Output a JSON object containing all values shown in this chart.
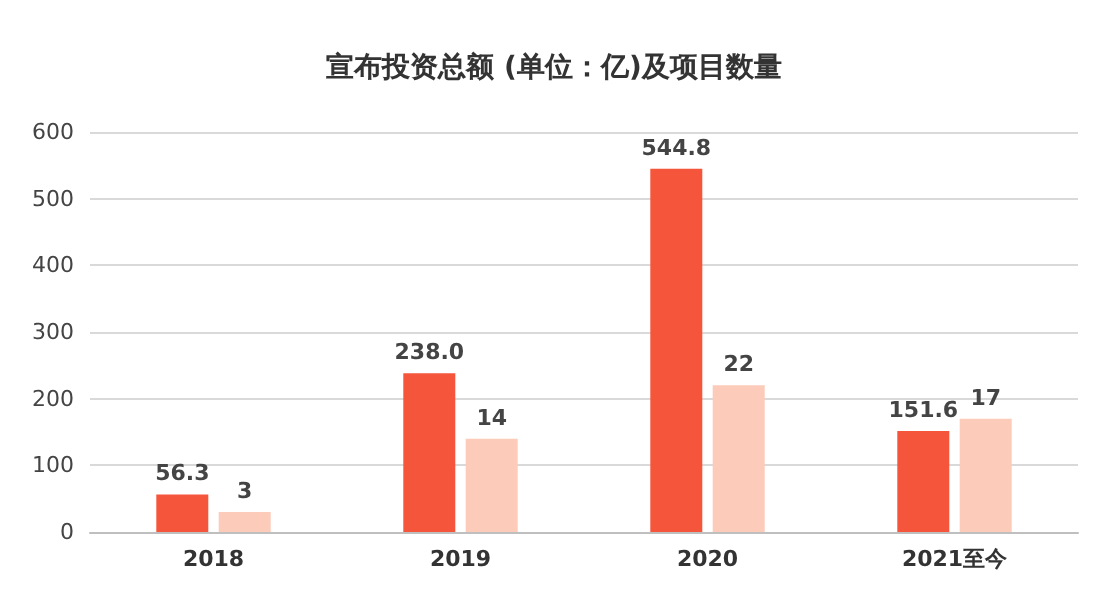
{
  "chart_data": {
    "type": "bar",
    "title": "宣布投资总额 (单位：亿)及项目数量",
    "categories": [
      "2018",
      "2019",
      "2020",
      "2021至今"
    ],
    "series": [
      {
        "color": "#f5553b",
        "values": [
          56.3,
          238.0,
          544.8,
          151.6
        ],
        "value_labels": [
          "56.3",
          "238.0",
          "544.8",
          "151.6"
        ]
      },
      {
        "color": "#fccbb9",
        "values": [
          3,
          14,
          22,
          17
        ],
        "value_labels": [
          "3",
          "14",
          "22",
          "17"
        ],
        "axis": "y2"
      }
    ],
    "ylim": [
      0,
      600
    ],
    "yticks": [
      0,
      100,
      200,
      300,
      400,
      500,
      600
    ],
    "y2lim": [
      0,
      60
    ],
    "grid": "y"
  }
}
